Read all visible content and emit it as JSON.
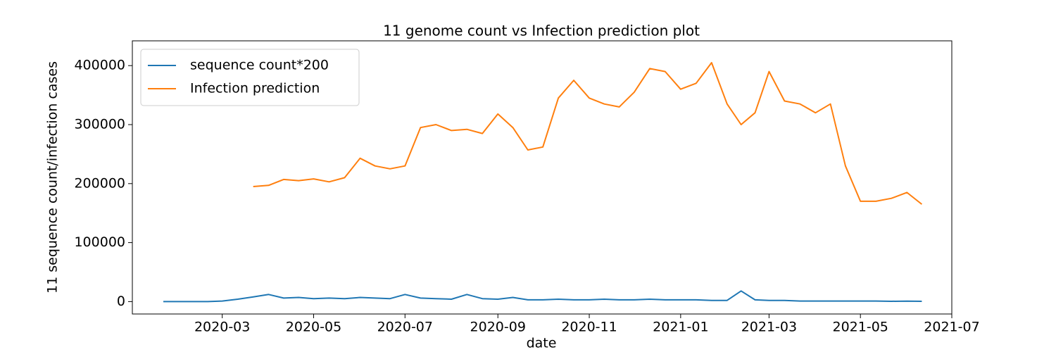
{
  "chart_data": {
    "type": "line",
    "title": "11 genome count vs Infection prediction plot",
    "x_label": "date",
    "y_label": "11 sequence count/infection cases",
    "x": [
      "2020-01",
      "2020-01",
      "2020-01",
      "2020-02",
      "2020-02",
      "2020-02",
      "2020-03",
      "2020-03",
      "2020-03",
      "2020-04",
      "2020-04",
      "2020-04",
      "2020-05",
      "2020-05",
      "2020-05",
      "2020-06",
      "2020-06",
      "2020-06",
      "2020-07",
      "2020-07",
      "2020-07",
      "2020-08",
      "2020-08",
      "2020-08",
      "2020-09",
      "2020-09",
      "2020-09",
      "2020-10",
      "2020-10",
      "2020-10",
      "2020-11",
      "2020-11",
      "2020-11",
      "2020-12",
      "2020-12",
      "2020-12",
      "2021-01",
      "2021-01",
      "2021-01",
      "2021-02",
      "2021-02",
      "2021-02",
      "2021-03",
      "2021-03",
      "2021-03",
      "2021-04",
      "2021-04",
      "2021-04",
      "2021-05",
      "2021-05",
      "2021-05",
      "2021-06",
      "2021-06",
      "2021-06"
    ],
    "series": [
      {
        "name": "sequence count*200",
        "color": "#1f77b4",
        "values": [
          null,
          null,
          0,
          0,
          0,
          0,
          1000,
          4000,
          8000,
          12000,
          6000,
          7000,
          5000,
          6000,
          5000,
          7000,
          6000,
          5000,
          12000,
          6000,
          5000,
          4000,
          12000,
          5000,
          4000,
          7000,
          3000,
          3000,
          4000,
          3000,
          3000,
          4000,
          3000,
          3000,
          4000,
          3000,
          3000,
          3000,
          2000,
          2000,
          18000,
          3000,
          2000,
          2000,
          1000,
          1000,
          1000,
          1000,
          1000,
          1000,
          500,
          800,
          500,
          null
        ]
      },
      {
        "name": "Infection prediction",
        "color": "#ff7f0e",
        "values": [
          null,
          null,
          null,
          null,
          null,
          null,
          null,
          null,
          195000,
          197000,
          207000,
          205000,
          208000,
          203000,
          210000,
          243000,
          230000,
          225000,
          230000,
          295000,
          300000,
          290000,
          292000,
          285000,
          318000,
          295000,
          257000,
          262000,
          345000,
          375000,
          345000,
          335000,
          330000,
          355000,
          395000,
          390000,
          360000,
          370000,
          405000,
          335000,
          300000,
          320000,
          390000,
          340000,
          335000,
          320000,
          335000,
          230000,
          170000,
          170000,
          175000,
          185000,
          165000,
          null
        ]
      }
    ],
    "xlim": [
      "2020-01",
      "2021-07"
    ],
    "xticks": [
      "2020-03",
      "2020-05",
      "2020-07",
      "2020-09",
      "2020-11",
      "2021-01",
      "2021-03",
      "2021-05",
      "2021-07"
    ],
    "ylim": [
      -21000,
      442000
    ],
    "yticks": [
      0,
      100000,
      200000,
      300000,
      400000
    ],
    "legend": "upper left",
    "grid": false
  }
}
